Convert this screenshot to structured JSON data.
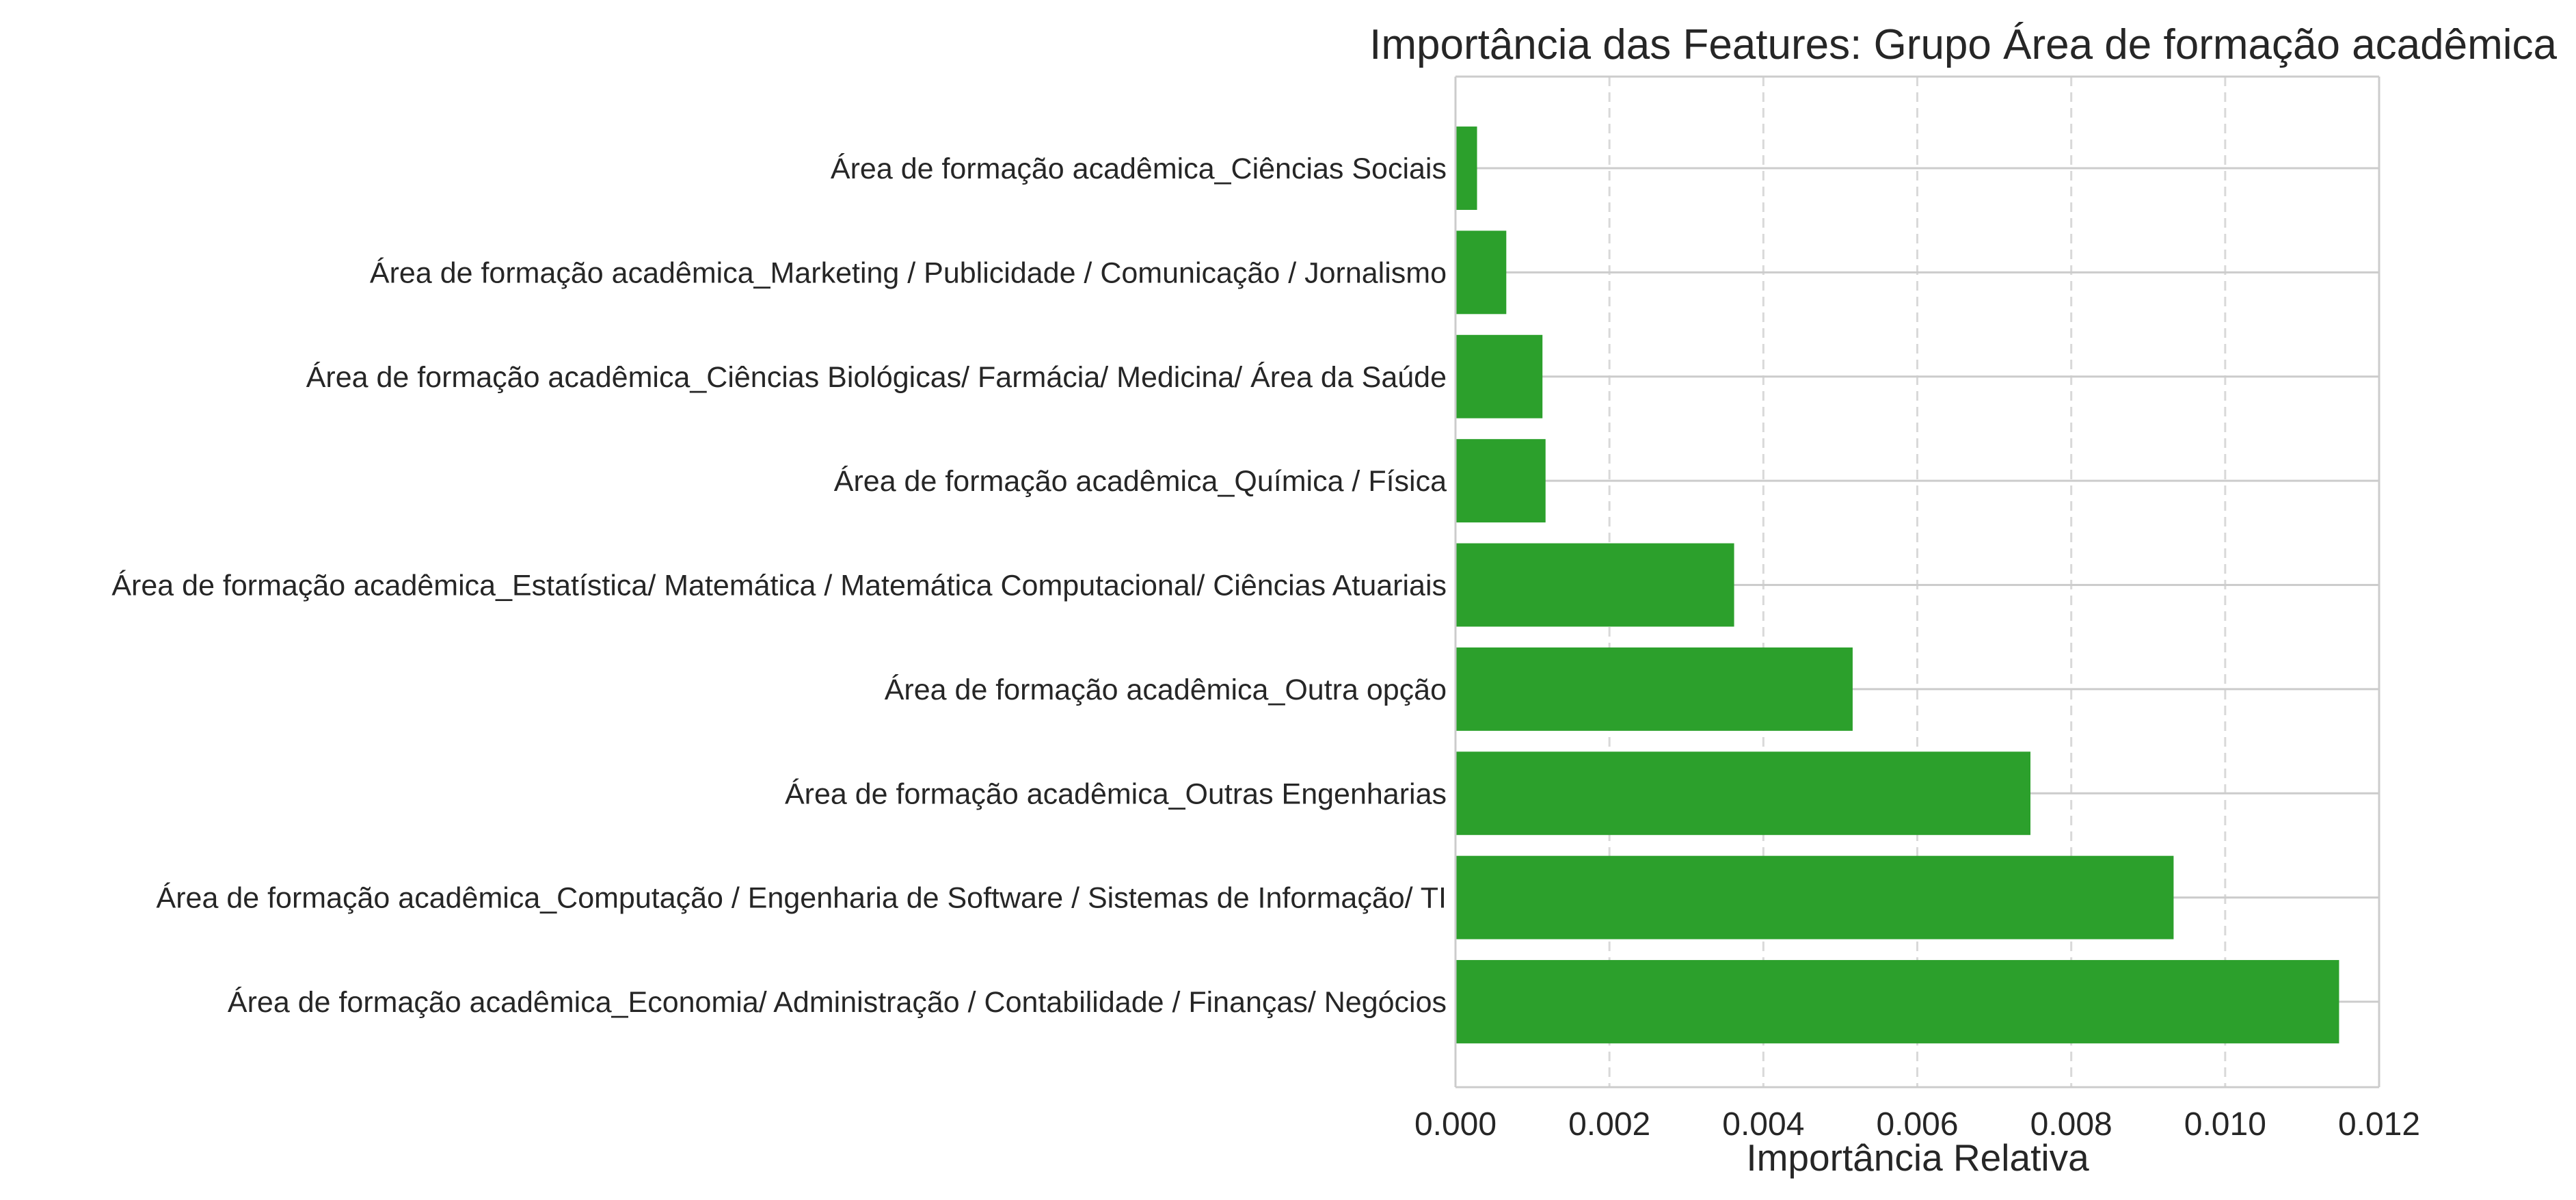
{
  "chart_data": {
    "type": "bar",
    "orientation": "horizontal",
    "title": "Importância das Features: Grupo Área de formação acadêmica",
    "xlabel": "Importância Relativa",
    "ylabel": "",
    "categories": [
      "Área de formação acadêmica_Ciências Sociais",
      "Área de formação acadêmica_Marketing / Publicidade / Comunicação / Jornalismo",
      "Área de formação acadêmica_Ciências Biológicas/ Farmácia/ Medicina/ Área da Saúde",
      "Área de formação acadêmica_Química / Física",
      "Área de formação acadêmica_Estatística/ Matemática / Matemática Computacional/ Ciências Atuariais",
      "Área de formação acadêmica_Outra opção",
      "Área de formação acadêmica_Outras Engenharias",
      "Área de formação acadêmica_Computação / Engenharia de Software / Sistemas de Informação/ TI",
      "Área de formação acadêmica_Economia/ Administração / Contabilidade / Finanças/ Negócios"
    ],
    "values": [
      0.00028,
      0.00066,
      0.00113,
      0.00117,
      0.00362,
      0.00516,
      0.00747,
      0.00933,
      0.01148
    ],
    "xlim": [
      0.0,
      0.012
    ],
    "xticks": [
      "0.000",
      "0.002",
      "0.004",
      "0.006",
      "0.008",
      "0.010",
      "0.012"
    ],
    "grid": true,
    "legend": "none",
    "colors": {
      "bar": "#2ca02c",
      "grid_vertical": "#d9d9d9",
      "grid_horizontal": "#cccccc",
      "axis": "#cccccc",
      "text": "#262626"
    }
  }
}
